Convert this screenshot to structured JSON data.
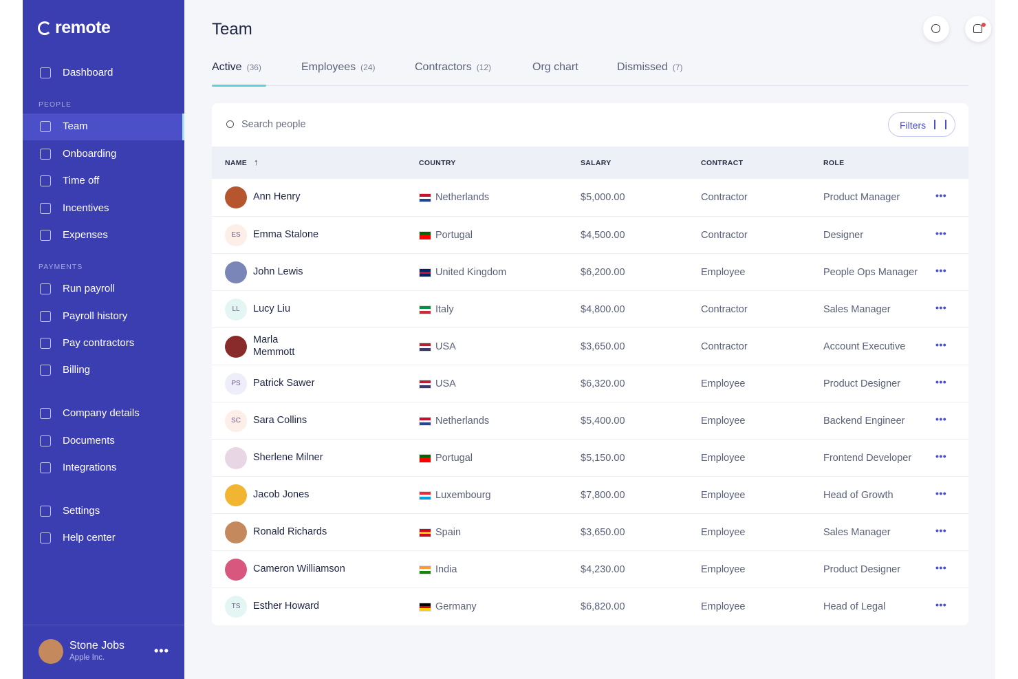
{
  "sidebar": {
    "brand": "remote",
    "top": [
      "Dashboard"
    ],
    "people": {
      "title": "PEOPLE",
      "items": [
        "Team",
        "Onboarding",
        "Time off",
        "Incentives",
        "Expenses"
      ]
    },
    "payments": {
      "title": "PAYMENTS",
      "items": [
        "Run payroll",
        "Payroll history",
        "Pay contractors",
        "Billing"
      ]
    },
    "company": [
      "Company details",
      "Documents",
      "Integrations"
    ],
    "support": [
      "Settings",
      "Help center"
    ],
    "user": {
      "name": "Stone Jobs",
      "company": "Apple Inc."
    }
  },
  "header": {
    "title": "Team",
    "tabs": [
      {
        "label": "Active",
        "count": "(36)"
      },
      {
        "label": "Employees",
        "count": "(24)"
      },
      {
        "label": "Contractors",
        "count": "(12)"
      },
      {
        "label": "Org chart"
      },
      {
        "label": "Dismissed",
        "count": "(7)"
      }
    ]
  },
  "search": {
    "placeholder": "Search people",
    "filters": "Filters"
  },
  "table": {
    "columns": [
      "NAME",
      "COUNTRY",
      "SALARY",
      "CONTRACT",
      "ROLE"
    ],
    "rows": [
      {
        "name": "Ann Henry",
        "avatar": "#b5562e",
        "country": "Netherlands",
        "flag": [
          "#c8102e",
          "#ffffff",
          "#21468b"
        ],
        "salary": "$5,000.00",
        "contract": "Contractor",
        "role": "Product Manager"
      },
      {
        "name": "Emma Stalone",
        "initials": "ES",
        "avatar": "#fdeee8",
        "country": "Portugal",
        "flag": [
          "#006600",
          "#ff0000",
          "#ff0000"
        ],
        "salary": "$4,500.00",
        "contract": "Contractor",
        "role": "Designer"
      },
      {
        "name": "John Lewis",
        "avatar": "#7a86b8",
        "country": "United Kingdom",
        "flag": [
          "#012169",
          "#c8102e",
          "#012169"
        ],
        "salary": "$6,200.00",
        "contract": "Employee",
        "role": "People Ops Manager"
      },
      {
        "name": "Lucy Liu",
        "initials": "LL",
        "avatar": "#e4f6f4",
        "country": "Italy",
        "flag": [
          "#009246",
          "#ffffff",
          "#ce2b37"
        ],
        "salary": "$4,800.00",
        "contract": "Contractor",
        "role": "Sales Manager"
      },
      {
        "name": "Marla Memmott",
        "avatar": "#8a2b2b",
        "country": "USA",
        "flag": [
          "#b22234",
          "#ffffff",
          "#3c3b6e"
        ],
        "salary": "$3,650.00",
        "contract": "Contractor",
        "role": "Account Executive"
      },
      {
        "name": "Patrick Sawer",
        "initials": "PS",
        "avatar": "#eeeefb",
        "country": "USA",
        "flag": [
          "#b22234",
          "#ffffff",
          "#3c3b6e"
        ],
        "salary": "$6,320.00",
        "contract": "Employee",
        "role": "Product Designer"
      },
      {
        "name": "Sara Collins",
        "initials": "SC",
        "avatar": "#fdeee8",
        "country": "Netherlands",
        "flag": [
          "#c8102e",
          "#ffffff",
          "#21468b"
        ],
        "salary": "$5,400.00",
        "contract": "Employee",
        "role": "Backend Engineer"
      },
      {
        "name": "Sherlene Milner",
        "avatar": "#e9d6e4",
        "country": "Portugal",
        "flag": [
          "#006600",
          "#ff0000",
          "#ff0000"
        ],
        "salary": "$5,150.00",
        "contract": "Employee",
        "role": "Frontend Developer"
      },
      {
        "name": "Jacob Jones",
        "avatar": "#f2b531",
        "country": "Luxembourg",
        "flag": [
          "#ed2939",
          "#ffffff",
          "#00a1de"
        ],
        "salary": "$7,800.00",
        "contract": "Employee",
        "role": "Head of Growth"
      },
      {
        "name": "Ronald Richards",
        "avatar": "#c48a5e",
        "country": "Spain",
        "flag": [
          "#c60b1e",
          "#ffc400",
          "#c60b1e"
        ],
        "salary": "$3,650.00",
        "contract": "Employee",
        "role": "Sales Manager"
      },
      {
        "name": "Cameron Williamson",
        "avatar": "#d8577e",
        "country": "India",
        "flag": [
          "#ff9933",
          "#ffffff",
          "#138808"
        ],
        "salary": "$4,230.00",
        "contract": "Employee",
        "role": "Product Designer"
      },
      {
        "name": "Esther Howard",
        "initials": "TS",
        "avatar": "#e4f6f4",
        "country": "Germany",
        "flag": [
          "#000000",
          "#dd0000",
          "#ffce00"
        ],
        "salary": "$6,820.00",
        "contract": "Employee",
        "role": "Head of Legal"
      }
    ]
  }
}
